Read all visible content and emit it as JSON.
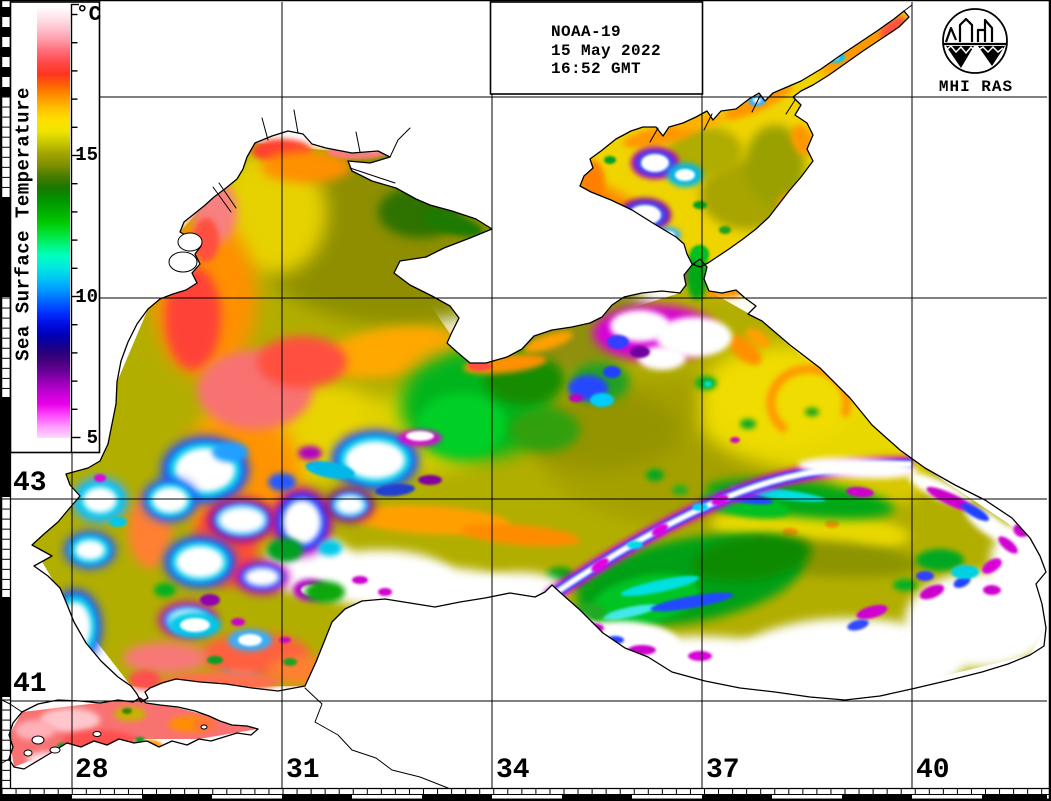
{
  "header": {
    "satellite": "NOAA-19",
    "date": "15 May 2022",
    "time": "16:52 GMT"
  },
  "logo": {
    "label": "MHI RAS"
  },
  "colorbar": {
    "title": "Sea Surface Temperature",
    "unit": "°C",
    "tick_labels": [
      "15",
      "10",
      "5"
    ],
    "tick_values": [
      15,
      10,
      5
    ],
    "scale_min": 5,
    "scale_max": 20,
    "gradient_top_to_bottom": [
      "#ffffff",
      "#ffe4ea",
      "#ffc2cd",
      "#ff9aa8",
      "#ff6b78",
      "#ff4848",
      "#ff3520",
      "#ff6400",
      "#ff9400",
      "#ffc000",
      "#ffe000",
      "#f0e400",
      "#c8c800",
      "#a0a400",
      "#7e9000",
      "#487c00",
      "#187800",
      "#009400",
      "#00ac00",
      "#00c800",
      "#00e232",
      "#00f47c",
      "#00ffc0",
      "#00e8e0",
      "#00c4f4",
      "#0098ff",
      "#0064ff",
      "#0030ff",
      "#000ce0",
      "#0000b4",
      "#180088",
      "#3c0078",
      "#640092",
      "#9400b4",
      "#c400d4",
      "#e800e8",
      "#ff48ff",
      "#ff9cff",
      "#ffd8ff"
    ]
  },
  "axes": {
    "latitude_labels": [
      "43",
      "41"
    ],
    "longitude_labels": [
      "28",
      "31",
      "34",
      "37",
      "40"
    ]
  }
}
